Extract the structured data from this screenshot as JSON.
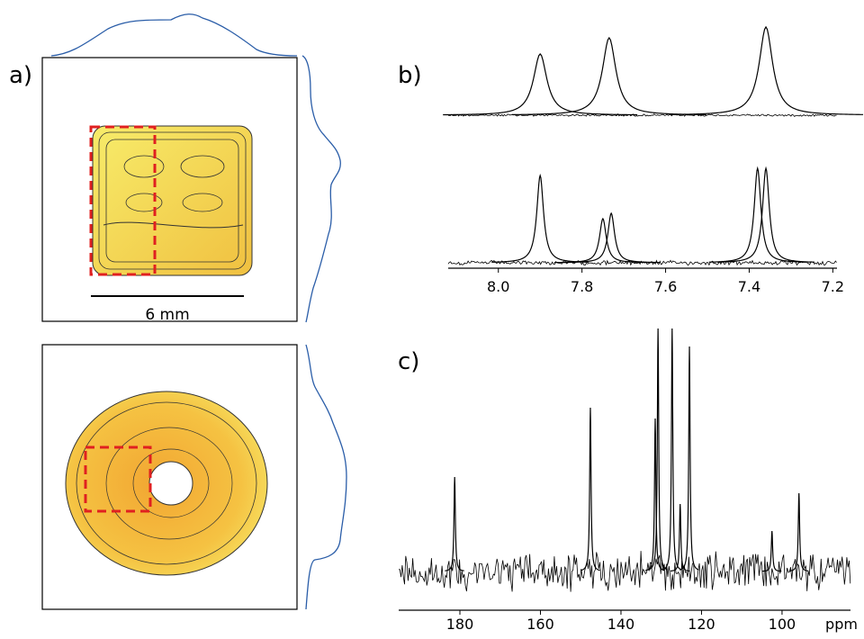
{
  "panel_a": {
    "label": "a)",
    "scale_bar": "6 mm"
  },
  "chart_data": [
    {
      "type": "spectrum",
      "label": "b)",
      "xlim": [
        8.12,
        7.19
      ],
      "xticks": [
        {
          "value": 8.0,
          "label": "8.0"
        },
        7.8,
        7.6,
        7.4,
        7.2
      ],
      "series": [
        {
          "color": "#000000",
          "x": [
            7.9,
            7.735,
            7.36
          ],
          "values": [
            68,
            86,
            98
          ]
        },
        {
          "color": "#000000",
          "x": [
            7.9,
            7.75,
            7.73,
            7.38,
            7.36
          ],
          "values": [
            97,
            49,
            55,
            105,
            105
          ]
        }
      ]
    },
    {
      "type": "spectrum",
      "label": "c)",
      "xlabel": "ppm",
      "xlim": [
        195.2,
        83
      ],
      "xticks": [
        180,
        160,
        140,
        120,
        100
      ],
      "series": [
        {
          "color": "#000000",
          "x": [
            181.3,
            147.6,
            131.5,
            130.8,
            127.3,
            125.3,
            123.0,
            95.8,
            102.5
          ],
          "values": [
            105,
            182,
            170,
            270,
            270,
            75,
            250,
            87,
            45
          ]
        }
      ]
    }
  ]
}
